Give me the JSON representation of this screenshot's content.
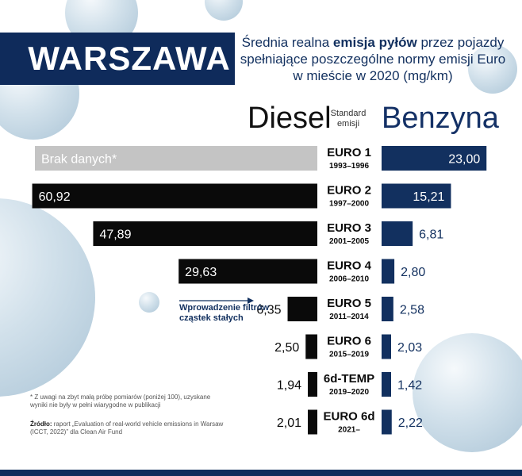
{
  "header": {
    "title": "WARSZAWA",
    "subtitle_pre": "Średnia realna ",
    "subtitle_bold": "emisja pyłów",
    "subtitle_post": " przez pojazdy spełniające poszczególne normy emisji Euro w mieście w 2020 (mg/km)"
  },
  "columns": {
    "diesel": "Diesel",
    "standard": "Standard emisji",
    "benzyna": "Benzyna"
  },
  "annotation": "Wprowadzenie filtrów cząstek stałych",
  "footnotes": {
    "note1": "* Z uwagi na zbyt małą próbę pomiarów (poniżej 100), uzyskane wyniki nie były w pełni wiarygodne w publikacji",
    "source_label": "Źródło:",
    "source_text": " raport „Evaluation of real-world vehicle emissions in Warsaw (ICCT, 2022)” dla Clean Air Fund"
  },
  "colors": {
    "diesel_bar": "#0a0a0a",
    "diesel_nodata": "#c4c4c4",
    "benzyna_bar": "#12305f",
    "navy": "#0f2b5b"
  },
  "chart_data": {
    "type": "bar",
    "title": "Średnia realna emisja pyłów przez pojazdy spełniające poszczególne normy emisji Euro w mieście w 2020 (mg/km)",
    "categories": [
      {
        "norm": "EURO 1",
        "years": "1993–1996"
      },
      {
        "norm": "EURO 2",
        "years": "1997–2000"
      },
      {
        "norm": "EURO 3",
        "years": "2001–2005"
      },
      {
        "norm": "EURO 4",
        "years": "2006–2010"
      },
      {
        "norm": "EURO 5",
        "years": "2011–2014"
      },
      {
        "norm": "EURO 6",
        "years": "2015–2019"
      },
      {
        "norm": "6d-TEMP",
        "years": "2019–2020"
      },
      {
        "norm": "EURO 6d",
        "years": "2021–"
      }
    ],
    "series": [
      {
        "name": "Diesel",
        "values": [
          null,
          60.92,
          47.89,
          29.63,
          6.35,
          2.5,
          1.94,
          2.01
        ],
        "labels": [
          "Brak danych*",
          "60,92",
          "47,89",
          "29,63",
          "6,35",
          "2,50",
          "1,94",
          "2,01"
        ]
      },
      {
        "name": "Benzyna",
        "values": [
          23.0,
          15.21,
          6.81,
          2.8,
          2.58,
          2.03,
          1.42,
          2.22
        ],
        "labels": [
          "23,00",
          "15,21",
          "6,81",
          "2,80",
          "2,58",
          "2,03",
          "1,42",
          "2,22"
        ]
      }
    ],
    "unit": "mg/km",
    "legend": "top"
  }
}
